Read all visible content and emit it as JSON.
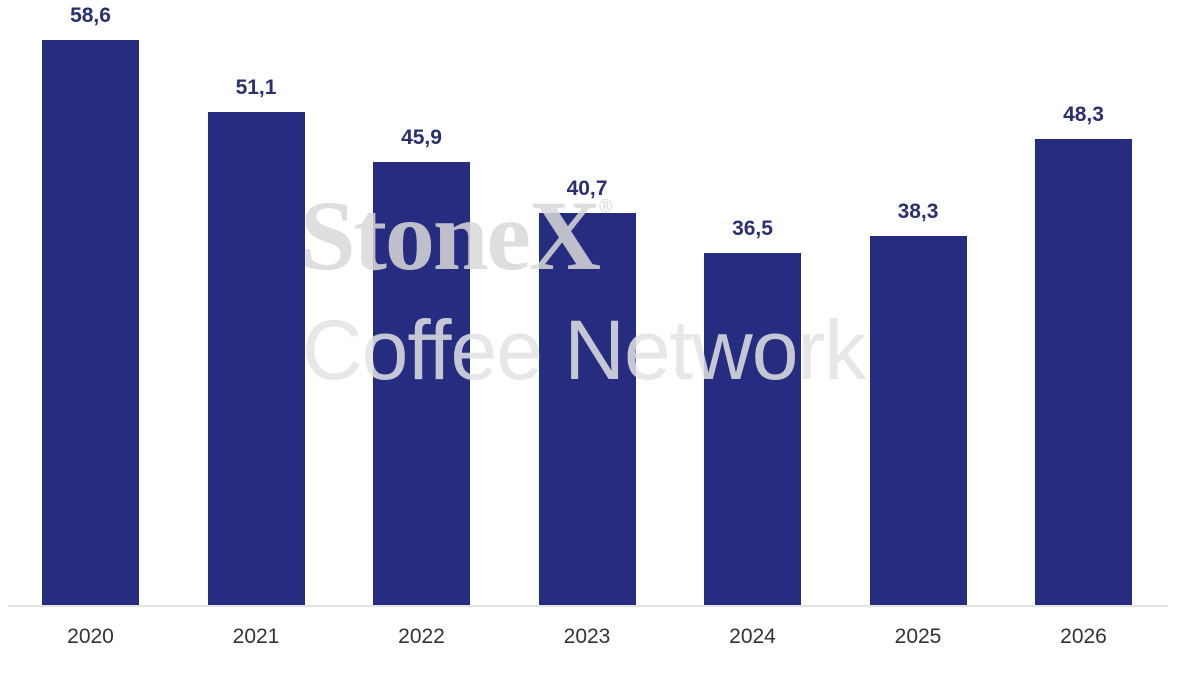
{
  "chart_data": {
    "type": "bar",
    "title": "",
    "xlabel": "",
    "ylabel": "",
    "categories": [
      "2020",
      "2021",
      "2022",
      "2023",
      "2024",
      "2025",
      "2026"
    ],
    "values": [
      58.6,
      51.1,
      45.9,
      40.7,
      36.5,
      38.3,
      48.3
    ],
    "value_labels": [
      "58,6",
      "51,1",
      "45,9",
      "40,7",
      "36,5",
      "38,3",
      "48,3"
    ],
    "ylim": [
      0,
      60
    ],
    "grid": false,
    "legend": null,
    "bar_color": "#262c80",
    "label_color": "#2b3070",
    "watermark": {
      "line1": "StoneX",
      "registered_mark": "®",
      "line2": "Coffee Network"
    }
  }
}
